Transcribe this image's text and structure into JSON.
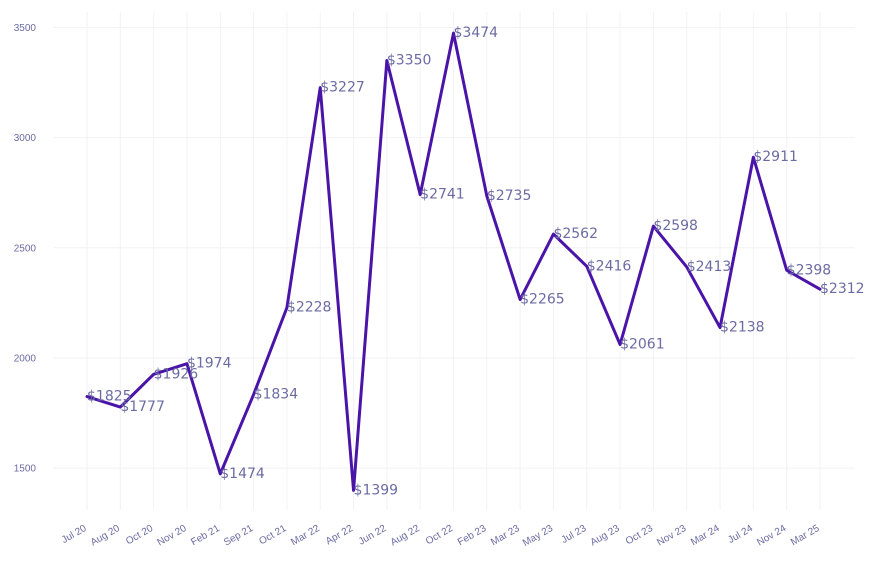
{
  "chart_data": {
    "type": "line",
    "title": "",
    "xlabel": "",
    "ylabel": "",
    "categories": [
      "Jul 20",
      "Aug 20",
      "Oct 20",
      "Nov 20",
      "Feb 21",
      "Sep 21",
      "Oct 21",
      "Mar 22",
      "Apr 22",
      "Jun 22",
      "Aug 22",
      "Oct 22",
      "Feb 23",
      "Mar 23",
      "May 23",
      "Jul 23",
      "Aug 23",
      "Oct 23",
      "Nov 23",
      "Mar 24",
      "Jul 24",
      "Nov 24",
      "Mar 25"
    ],
    "series": [
      {
        "values": [
          1825,
          1777,
          1926,
          1974,
          1474,
          1834,
          2228,
          3227,
          1399,
          3350,
          2741,
          3474,
          2735,
          2265,
          2562,
          2416,
          2061,
          2598,
          2413,
          2138,
          2911,
          2398,
          2312
        ],
        "labels": [
          "$1825",
          "$1777",
          "$1926",
          "$1974",
          "$1474",
          "$1834",
          "$2228",
          "$3227",
          "$1399",
          "$3350",
          "$2741",
          "$3474",
          "$2735",
          "$2265",
          "$2562",
          "$2416",
          "$2061",
          "$2598",
          "$2413",
          "$2138",
          "$2911",
          "$2398",
          "$2312"
        ],
        "color": "#4a14a8"
      }
    ],
    "yticks": [
      "1500",
      "2000",
      "2500",
      "3000",
      "3500"
    ],
    "ytick_values": [
      1500,
      2000,
      2500,
      3000,
      3500
    ],
    "ylim": [
      1310,
      3570
    ],
    "grid": true,
    "legend": "none"
  }
}
